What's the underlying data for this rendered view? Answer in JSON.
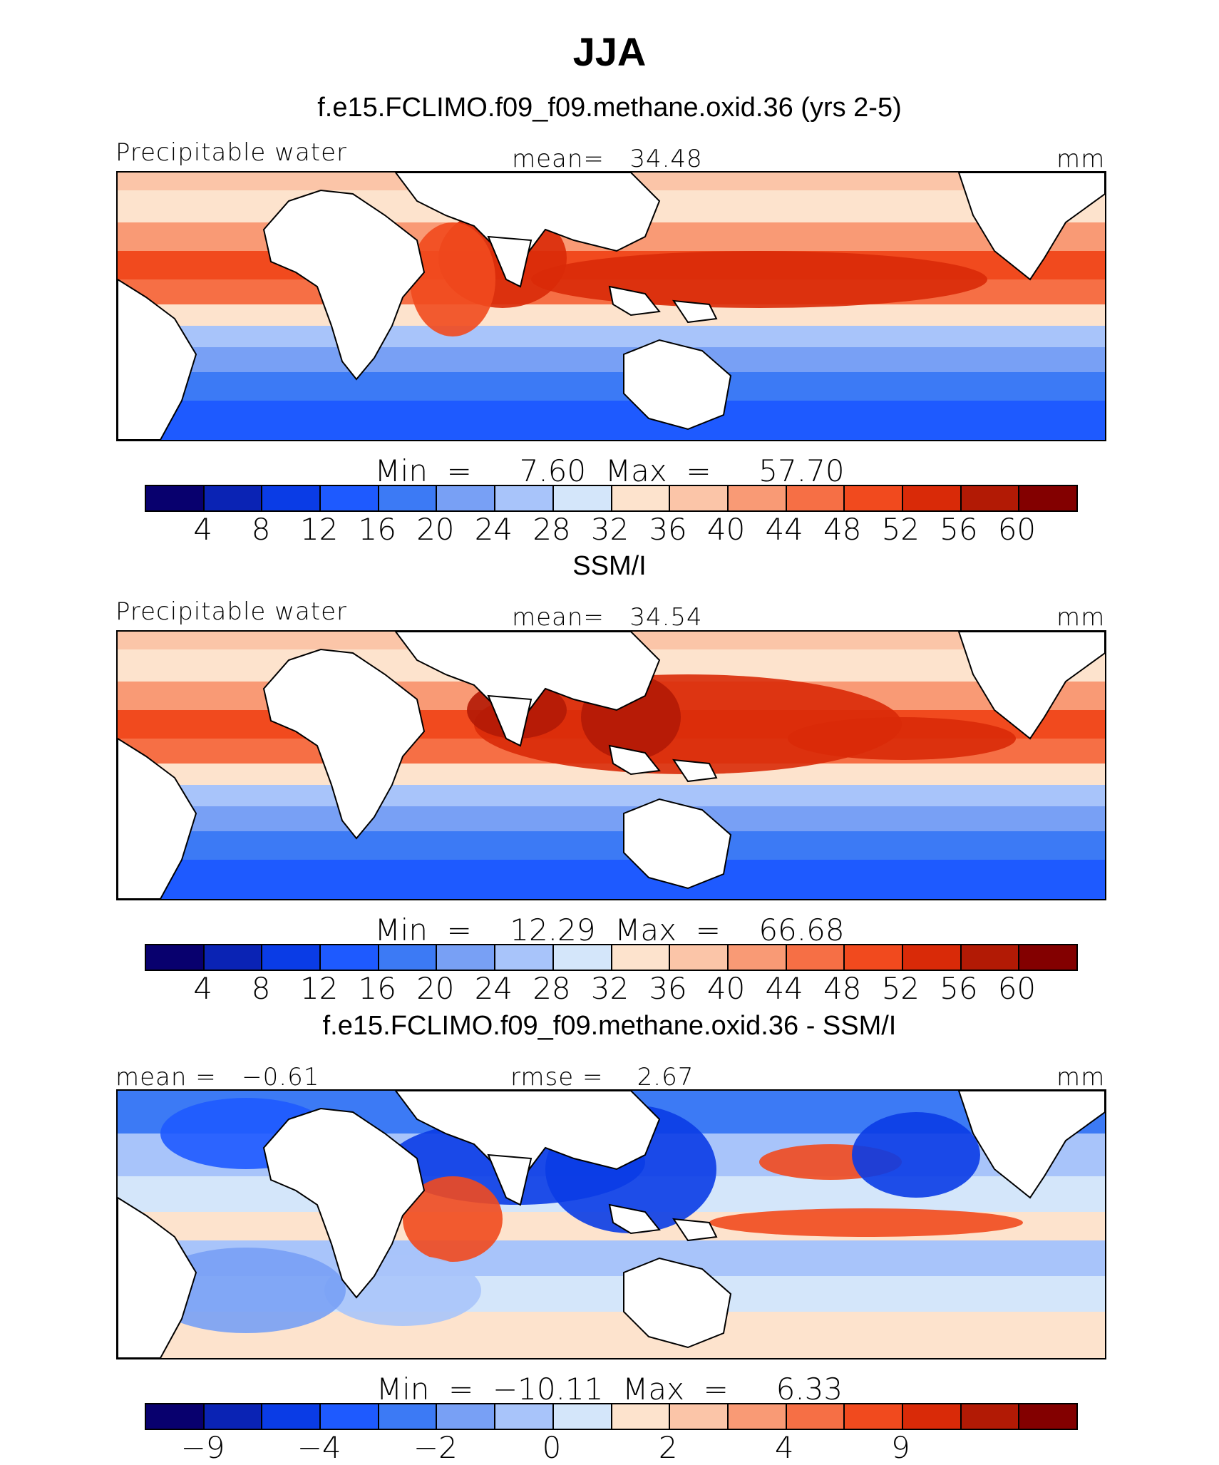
{
  "title": "JJA",
  "colors": {
    "abs_scale": [
      "#08006e",
      "#0a23b4",
      "#0a3ce6",
      "#1e5aff",
      "#3c7af5",
      "#78a0f5",
      "#a8c4fa",
      "#d4e6fa",
      "#fde3cd",
      "#fbc5a8",
      "#f99a75",
      "#f66f45",
      "#f14a1e",
      "#d92a08",
      "#b21a05",
      "#830000"
    ],
    "diff_scale": [
      "#08006e",
      "#0a23b4",
      "#0a3ce6",
      "#1e5aff",
      "#3c7af5",
      "#78a0f5",
      "#a8c4fa",
      "#d4e6fa",
      "#fde3cd",
      "#fbc5a8",
      "#f99a75",
      "#f66f45",
      "#f14a1e",
      "#d92a08",
      "#b21a05",
      "#830000"
    ],
    "land": "#ffffff",
    "coast": "#000000"
  },
  "panels": [
    {
      "title": "f.e15.FCLIMO.f09_f09.methane.oxid.36 (yrs 2-5)",
      "left_label": "Precipitable water",
      "center_label": "mean=   34.48",
      "right_label": "mm",
      "minmax": "Min  =     7.60  Max  =     57.70",
      "ticks": [
        "4",
        "8",
        "12",
        "16",
        "20",
        "24",
        "28",
        "32",
        "36",
        "40",
        "44",
        "48",
        "52",
        "56",
        "60"
      ],
      "kind": "model"
    },
    {
      "title": "SSM/I",
      "left_label": "Precipitable water",
      "center_label": "mean=   34.54",
      "right_label": "mm",
      "minmax": "Min  =    12.29  Max  =    66.68",
      "ticks": [
        "4",
        "8",
        "12",
        "16",
        "20",
        "24",
        "28",
        "32",
        "36",
        "40",
        "44",
        "48",
        "52",
        "56",
        "60"
      ],
      "kind": "obs"
    },
    {
      "title": "f.e15.FCLIMO.f09_f09.methane.oxid.36 - SSM/I",
      "left_label": "mean =   −0.61",
      "center_label": "rmse =    2.67",
      "right_label": "mm",
      "minmax": "Min  =  −10.11  Max  =     6.33",
      "ticks": [
        "−9",
        "−4",
        "−2",
        "0",
        "2",
        "4",
        "9"
      ],
      "tick_positions": [
        1,
        3,
        5,
        7,
        9,
        11,
        13
      ],
      "kind": "diff"
    }
  ]
}
